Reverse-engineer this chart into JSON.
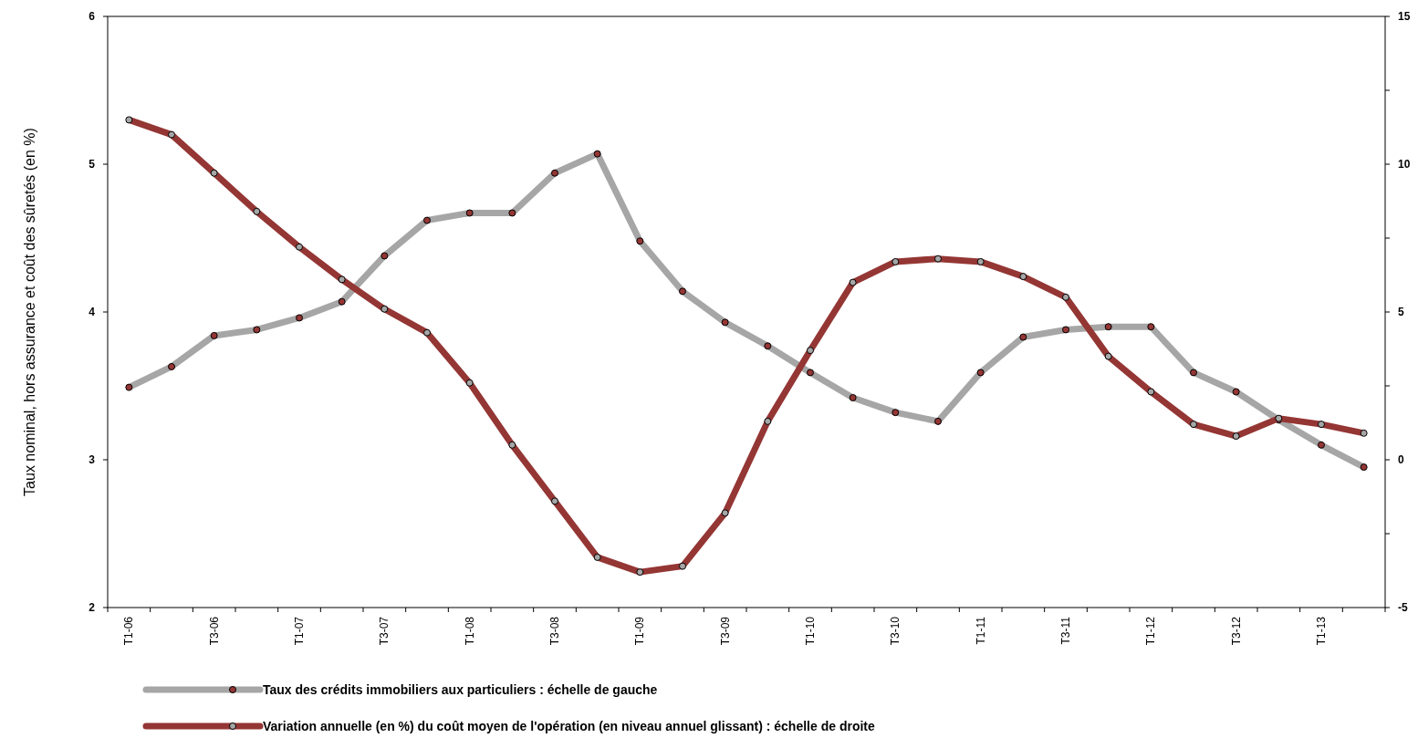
{
  "chart_data": {
    "type": "line",
    "ylabel": "Taux nominal, hors assurance et coût des sûretés (en %)",
    "categories": [
      "T1-06",
      null,
      "T3-06",
      null,
      "T1-07",
      null,
      "T3-07",
      null,
      "T1-08",
      null,
      "T3-08",
      null,
      "T1-09",
      null,
      "T3-09",
      null,
      "T1-10",
      null,
      "T3-10",
      null,
      "T1-11",
      null,
      "T3-11",
      null,
      "T1-12",
      null,
      "T3-12",
      null,
      "T1-13",
      null
    ],
    "series": [
      {
        "name": "Taux des crédits immobiliers aux particuliers : échelle de gauche",
        "color": "#a6a6a6",
        "values": [
          3.49,
          3.63,
          3.84,
          3.88,
          3.96,
          4.07,
          4.38,
          4.62,
          4.67,
          4.67,
          4.94,
          5.07,
          4.48,
          4.14,
          3.93,
          3.77,
          3.59,
          3.42,
          3.32,
          3.26,
          3.59,
          3.83,
          3.88,
          3.9,
          3.9,
          3.59,
          3.46,
          3.27,
          3.1,
          2.95
        ]
      },
      {
        "name": "Variation annuelle (en %) du coût moyen de l'opération (en niveau annuel glissant) : échelle de droite",
        "color": "#943634",
        "axis": "y2",
        "values": [
          11.5,
          11,
          9.7,
          8.4,
          7.2,
          6.1,
          5.1,
          4.3,
          2.6,
          0.5,
          -1.4,
          -3.3,
          -3.8,
          -3.6,
          -1.8,
          1.3,
          3.7,
          6,
          6.7,
          6.8,
          6.7,
          6.2,
          5.5,
          3.5,
          2.3,
          1.2,
          0.8,
          1.4,
          1.2,
          0.9
        ]
      }
    ],
    "ylim": [
      2,
      6
    ],
    "yticks": [
      2,
      3,
      4,
      5,
      6
    ],
    "y2lim": [
      -5,
      15
    ],
    "y2ticks": [
      -5,
      {
        "value": -2.5,
        "label": null
      },
      0,
      {
        "value": 2.5,
        "label": null
      },
      5,
      {
        "value": 7.5,
        "label": null
      },
      10,
      {
        "value": 12.5,
        "label": null
      },
      15
    ],
    "marker": "circle",
    "line_style": "solid",
    "grid": false,
    "legend": "bottom"
  }
}
